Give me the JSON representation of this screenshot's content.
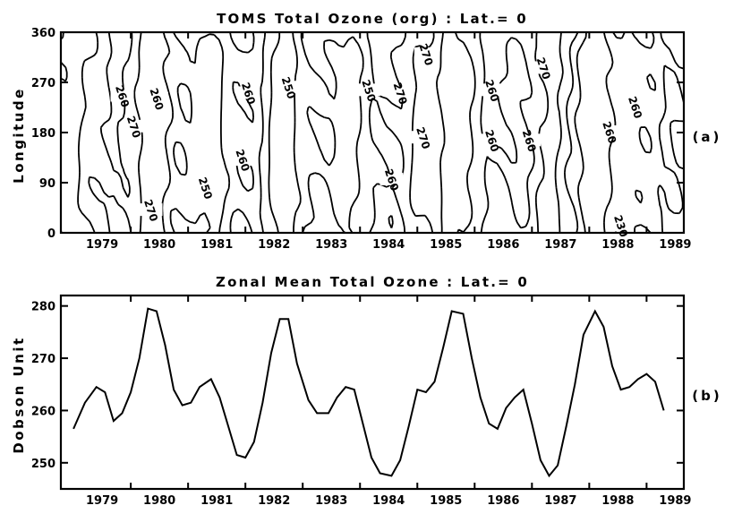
{
  "chart_data": [
    {
      "type": "contour",
      "title": "TOMS Total Ozone (org) : Lat.= 0",
      "panel_label": "(a)",
      "ylabel": "Longitude",
      "xlabel": "",
      "ylim": [
        0,
        360
      ],
      "yticks": [
        "0",
        "90",
        "180",
        "270",
        "360"
      ],
      "xticks": [
        "1979",
        "1980",
        "1981",
        "1982",
        "1983",
        "1984",
        "1985",
        "1986",
        "1987",
        "1988",
        "1989"
      ],
      "contour_levels": [
        230,
        240,
        250,
        260,
        270
      ],
      "contour_labels": [
        {
          "text": "260",
          "x": 1979.85,
          "y": 245
        },
        {
          "text": "270",
          "x": 1980.05,
          "y": 190
        },
        {
          "text": "260",
          "x": 1980.45,
          "y": 240
        },
        {
          "text": "270",
          "x": 1980.35,
          "y": 40
        },
        {
          "text": "250",
          "x": 1981.3,
          "y": 80
        },
        {
          "text": "260",
          "x": 1981.95,
          "y": 130
        },
        {
          "text": "260",
          "x": 1982.05,
          "y": 250
        },
        {
          "text": "250",
          "x": 1982.75,
          "y": 260
        },
        {
          "text": "250",
          "x": 1984.15,
          "y": 255
        },
        {
          "text": "270",
          "x": 1984.7,
          "y": 250
        },
        {
          "text": "260",
          "x": 1984.55,
          "y": 95
        },
        {
          "text": "270",
          "x": 1985.15,
          "y": 320
        },
        {
          "text": "270",
          "x": 1985.1,
          "y": 170
        },
        {
          "text": "260",
          "x": 1986.3,
          "y": 255
        },
        {
          "text": "260",
          "x": 1986.3,
          "y": 165
        },
        {
          "text": "260",
          "x": 1986.95,
          "y": 165
        },
        {
          "text": "270",
          "x": 1987.2,
          "y": 295
        },
        {
          "text": "260",
          "x": 1988.35,
          "y": 180
        },
        {
          "text": "260",
          "x": 1988.8,
          "y": 225
        },
        {
          "text": "230",
          "x": 1988.55,
          "y": 12
        }
      ]
    },
    {
      "type": "line",
      "title": "Zonal Mean Total Ozone : Lat.= 0",
      "panel_label": "(b)",
      "ylabel": "Dobson Unit",
      "xlabel": "",
      "ylim": [
        245,
        282
      ],
      "yticks": [
        250,
        260,
        270,
        280
      ],
      "xticks": [
        "1979",
        "1980",
        "1981",
        "1982",
        "1983",
        "1984",
        "1985",
        "1986",
        "1987",
        "1988",
        "1989"
      ],
      "series": [
        {
          "x": [
            1979.0,
            1979.2,
            1979.4,
            1979.55,
            1979.7,
            1979.85,
            1980.0,
            1980.15,
            1980.3,
            1980.45,
            1980.6,
            1980.75,
            1980.9,
            1981.05,
            1981.2,
            1981.4,
            1981.55,
            1981.7,
            1981.85,
            1982.0,
            1982.15,
            1982.3,
            1982.45,
            1982.6,
            1982.75,
            1982.9,
            1983.1,
            1983.25,
            1983.45,
            1983.6,
            1983.75,
            1983.9,
            1984.05,
            1984.2,
            1984.35,
            1984.55,
            1984.7,
            1984.85,
            1985.0,
            1985.15,
            1985.3,
            1985.45,
            1985.6,
            1985.8,
            1985.95,
            1986.1,
            1986.25,
            1986.4,
            1986.55,
            1986.7,
            1986.85,
            1987.0,
            1987.15,
            1987.3,
            1987.45,
            1987.6,
            1987.75,
            1987.9,
            1988.1,
            1988.25,
            1988.4,
            1988.55,
            1988.7,
            1988.85,
            1989.0,
            1989.15,
            1989.3
          ],
          "y": [
            256.5,
            261.5,
            264.5,
            263.5,
            258.0,
            259.5,
            263.5,
            270.0,
            279.5,
            279.0,
            272.5,
            264.0,
            261.0,
            261.5,
            264.5,
            266.0,
            262.5,
            257.0,
            251.5,
            251.0,
            254.0,
            261.5,
            271.0,
            277.5,
            277.5,
            269.0,
            262.0,
            259.5,
            259.5,
            262.5,
            264.5,
            264.0,
            257.5,
            251.0,
            248.0,
            247.5,
            250.5,
            257.0,
            264.0,
            263.5,
            265.5,
            272.0,
            279.0,
            278.5,
            270.0,
            262.5,
            257.5,
            256.5,
            260.5,
            262.5,
            264.0,
            257.5,
            250.5,
            247.5,
            249.5,
            257.0,
            265.0,
            274.5,
            279.0,
            276.0,
            268.5,
            264.0,
            264.5,
            266.0,
            267.0,
            265.5,
            260.0
          ]
        }
      ]
    }
  ]
}
